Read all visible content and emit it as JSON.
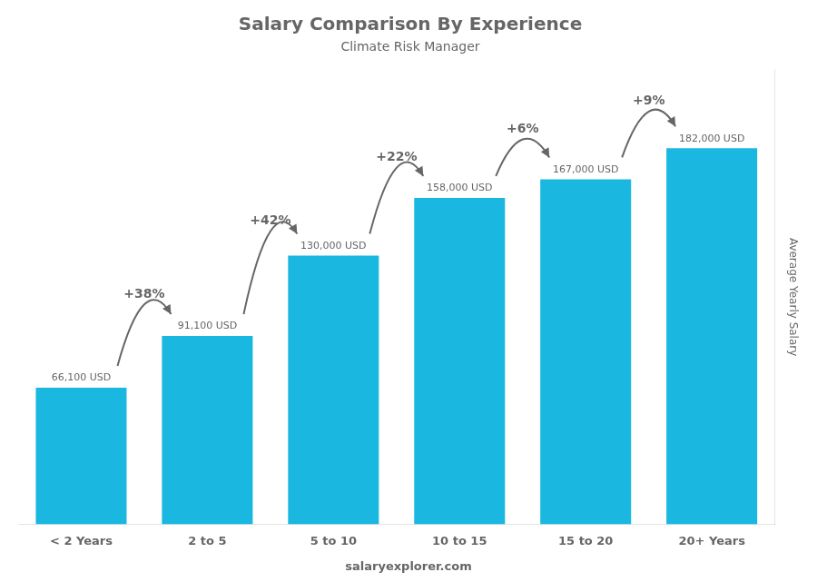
{
  "chart_data": {
    "type": "bar",
    "title": "Salary Comparison By Experience",
    "subtitle": "Climate Risk Manager",
    "categories": [
      "< 2 Years",
      "2 to 5",
      "5 to 10",
      "10 to 15",
      "15 to 20",
      "20+ Years"
    ],
    "values": [
      66100,
      91100,
      130000,
      158000,
      167000,
      182000
    ],
    "value_labels": [
      "66,100 USD",
      "91,100 USD",
      "130,000 USD",
      "158,000 USD",
      "167,000 USD",
      "182,000 USD"
    ],
    "data_labels": true,
    "annotations": [
      "+38%",
      "+42%",
      "+22%",
      "+6%",
      "+9%"
    ],
    "ylabel": "Average Yearly Salary",
    "footer": [
      "salary",
      "explorer.com"
    ],
    "ylim": [
      0,
      220000
    ],
    "tick_labels": "x",
    "grid": false,
    "color": "#1ab8e0"
  }
}
